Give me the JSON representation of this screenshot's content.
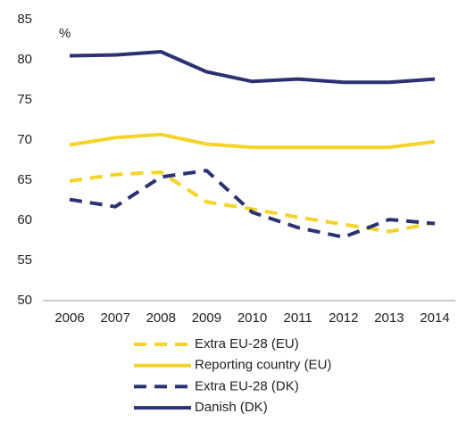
{
  "chart_data": {
    "type": "line",
    "ylabel": "%",
    "categories": [
      "2006",
      "2007",
      "2008",
      "2009",
      "2010",
      "2011",
      "2012",
      "2013",
      "2014"
    ],
    "series": [
      {
        "name": "Extra EU-28 (EU)",
        "color": "#f5d327",
        "dashed": true,
        "values": [
          64.9,
          65.7,
          66.0,
          62.3,
          61.4,
          60.4,
          59.5,
          58.6,
          59.7
        ]
      },
      {
        "name": "Reporting country (EU)",
        "color": "#f5d327",
        "dashed": false,
        "values": [
          69.4,
          70.3,
          70.7,
          69.5,
          69.1,
          69.1,
          69.1,
          69.1,
          69.8
        ]
      },
      {
        "name": "Extra EU-28 (DK)",
        "color": "#2b3272",
        "dashed": true,
        "values": [
          62.6,
          61.7,
          65.4,
          66.2,
          61.0,
          59.1,
          57.9,
          60.1,
          59.6
        ]
      },
      {
        "name": "Danish (DK)",
        "color": "#2b3272",
        "dashed": false,
        "values": [
          80.5,
          80.6,
          81.0,
          78.5,
          77.3,
          77.6,
          77.2,
          77.2,
          77.6
        ]
      }
    ],
    "ylim": [
      50,
      85
    ],
    "yticks": [
      50,
      55,
      60,
      65,
      70,
      75,
      80,
      85
    ],
    "grid": false
  }
}
